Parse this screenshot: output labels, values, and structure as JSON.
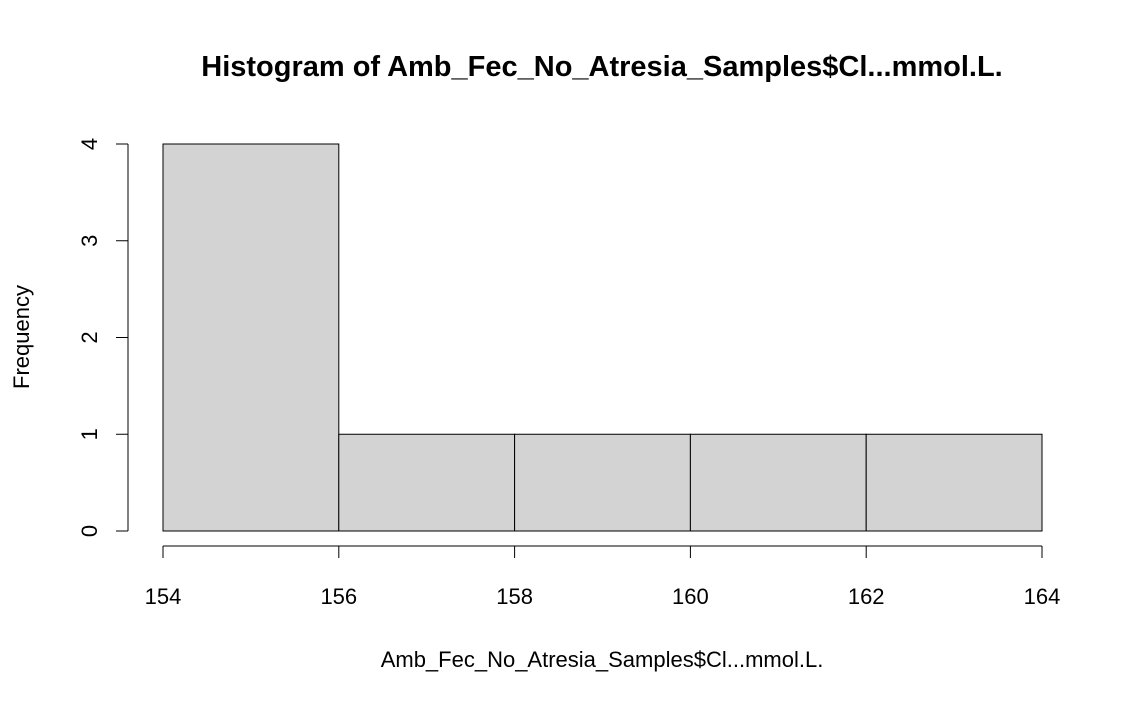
{
  "chart_data": {
    "type": "bar",
    "title": "Histogram of Amb_Fec_No_Atresia_Samples$Cl...mmol.L.",
    "xlabel": "Amb_Fec_No_Atresia_Samples$Cl...mmol.L.",
    "ylabel": "Frequency",
    "bins": [
      {
        "start": 154,
        "end": 156,
        "count": 4
      },
      {
        "start": 156,
        "end": 158,
        "count": 1
      },
      {
        "start": 158,
        "end": 160,
        "count": 1
      },
      {
        "start": 160,
        "end": 162,
        "count": 1
      },
      {
        "start": 162,
        "end": 164,
        "count": 1
      }
    ],
    "xticks": [
      154,
      156,
      158,
      160,
      162,
      164
    ],
    "yticks": [
      0,
      1,
      2,
      3,
      4
    ],
    "xlim": [
      154,
      164
    ],
    "ylim": [
      0,
      4
    ],
    "fill_color": "#d3d3d3",
    "grid": false,
    "legend": "none"
  }
}
